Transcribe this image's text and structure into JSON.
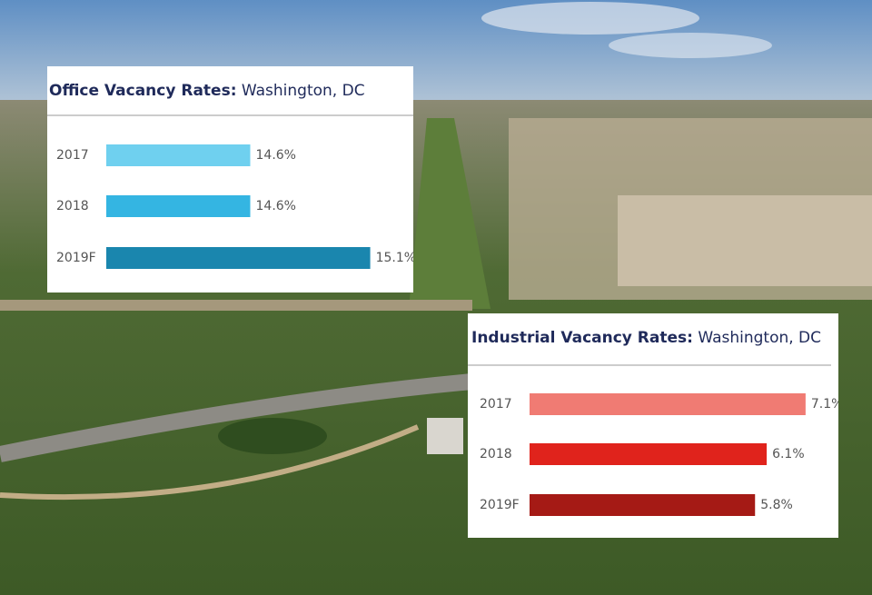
{
  "chart_data": [
    {
      "type": "bar",
      "orientation": "horizontal",
      "title": "Office Vacancy Rates:",
      "subtitle": "Washington, DC",
      "categories": [
        "2017",
        "2018",
        "2019F"
      ],
      "values": [
        14.6,
        14.6,
        15.1
      ],
      "value_labels": [
        "14.6%",
        "14.6%",
        "15.1%"
      ],
      "colors": [
        "#6fd0ef",
        "#34b5e2",
        "#1a86ae"
      ],
      "xlim": [
        14,
        15.2
      ]
    },
    {
      "type": "bar",
      "orientation": "horizontal",
      "title": "Industrial Vacancy Rates:",
      "subtitle": "Washington, DC",
      "categories": [
        "2017",
        "2018",
        "2019F"
      ],
      "values": [
        7.1,
        6.1,
        5.8
      ],
      "value_labels": [
        "7.1%",
        "6.1%",
        "5.8%"
      ],
      "colors": [
        "#f07b73",
        "#e0231c",
        "#a51a15"
      ],
      "xlim": [
        0,
        7.5
      ]
    }
  ]
}
